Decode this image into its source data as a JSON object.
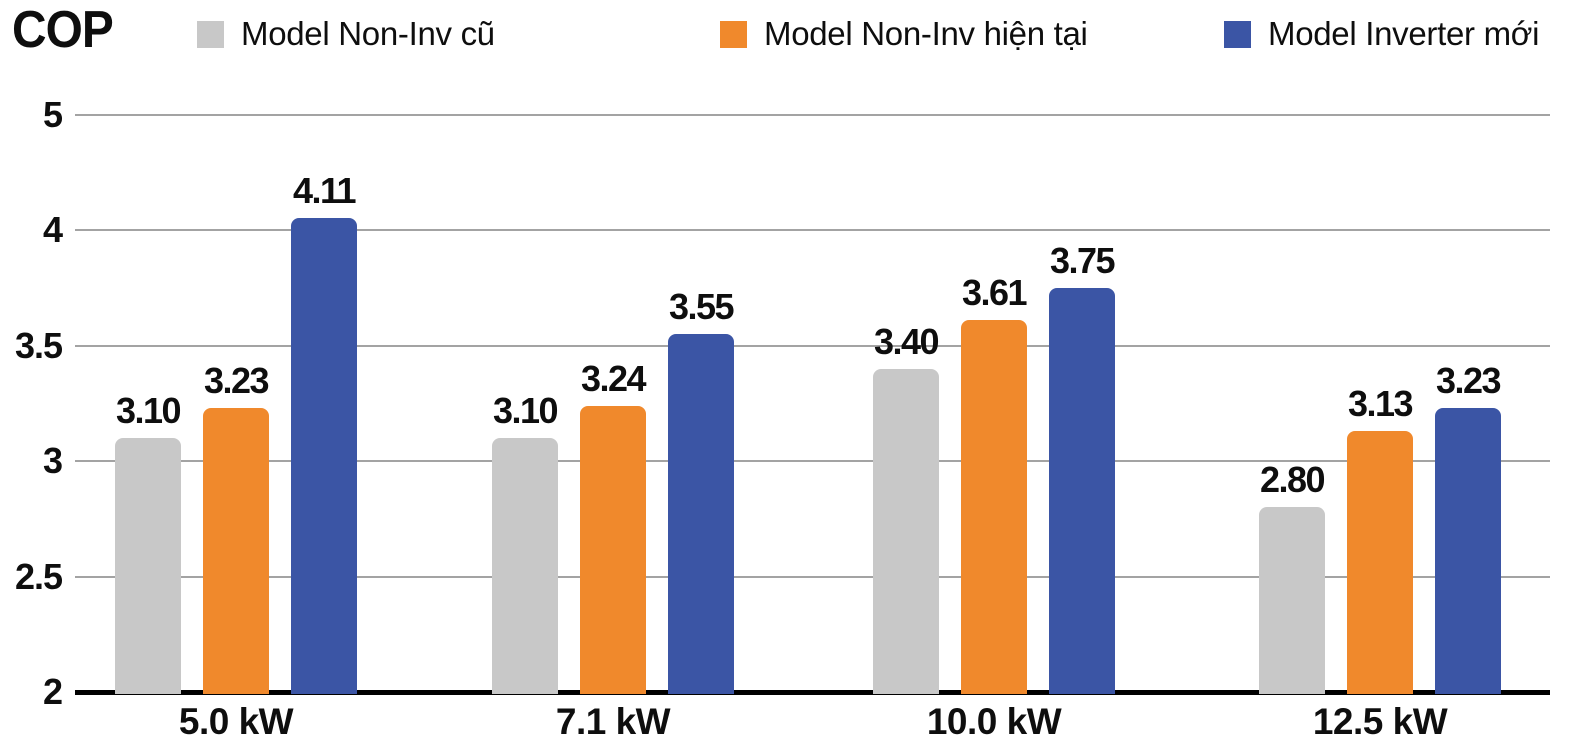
{
  "chart_data": {
    "type": "bar",
    "title": "COP",
    "categories": [
      "5.0 kW",
      "7.1 kW",
      "10.0 kW",
      "12.5 kW"
    ],
    "series": [
      {
        "name": "Model Non-Inv cũ",
        "color": "#C8C8C8",
        "values": [
          3.1,
          3.1,
          3.4,
          2.8
        ],
        "labels": [
          "3.10",
          "3.10",
          "3.40",
          "2.80"
        ]
      },
      {
        "name": "Model Non-Inv hiện tại",
        "color": "#F0892C",
        "values": [
          3.23,
          3.24,
          3.61,
          3.13
        ],
        "labels": [
          "3.23",
          "3.24",
          "3.61",
          "3.13"
        ]
      },
      {
        "name": "Model Inverter mới",
        "color": "#3B55A5",
        "values": [
          4.11,
          3.55,
          3.75,
          3.23
        ],
        "labels": [
          "4.11",
          "3.55",
          "3.75",
          "3.23"
        ]
      }
    ],
    "yticks": [
      "5",
      "4",
      "3.5",
      "3",
      "2.5",
      "2"
    ],
    "ylim": [
      2,
      5
    ],
    "legend_position": "top",
    "grid": "horizontal",
    "colors": {
      "grid_line": "#A3A3A3",
      "axis_line": "#000000",
      "text": "#0E0E0E"
    }
  }
}
